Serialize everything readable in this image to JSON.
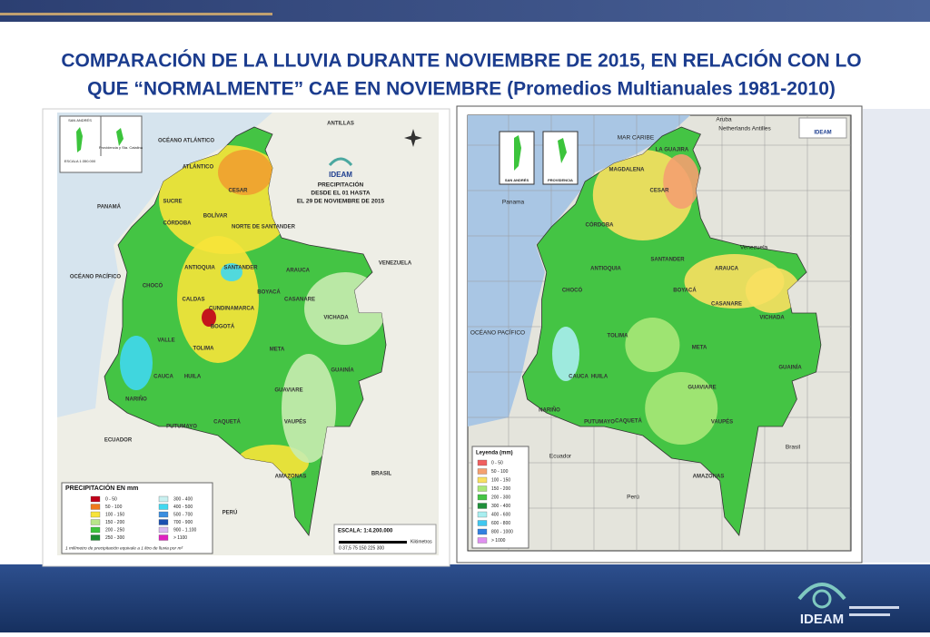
{
  "title": [
    "COMPARACIÓN DE LA LLUVIA DURANTE NOVIEMBRE DE 2015, EN RELACIÓN CON LO",
    "QUE “NORMALMENTE” CAE EN NOVIEMBRE (Promedios Multianuales 1981-2010)"
  ],
  "left_map": {
    "org": "IDEAM",
    "heading": [
      "PRECIPITACIÓN",
      "DESDE EL 01 HASTA",
      "EL 29 DE NOVIEMBRE DE 2015"
    ],
    "inset": [
      "SAN ANDRÉS",
      "Providencia y Sta. Catalina",
      "ESCALA 1:350.000"
    ],
    "labels": [
      "ANTILLAS",
      "OCÉANO ATLÁNTICO",
      "PANAMÁ",
      "VENEZUELA",
      "OCÉANO PACÍFICO",
      "ECUADOR",
      "BRASIL",
      "PERÚ",
      "ATLÁNTICO",
      "CESAR",
      "SUCRE",
      "CÓRDOBA",
      "BOLÍVAR",
      "NORTE DE SANTANDER",
      "ANTIOQUIA",
      "SANTANDER",
      "ARAUCA",
      "CHOCÓ",
      "BOYACÁ",
      "CASANARE",
      "CALDAS",
      "CUNDINAMARCA",
      "VICHADA",
      "BOGOTÁ",
      "VALLE",
      "TOLIMA",
      "META",
      "HUILA",
      "CAUCA",
      "GUAINÍA",
      "GUAVIARE",
      "NARIÑO",
      "CAQUETÁ",
      "PUTUMAYO",
      "VAUPÉS",
      "AMAZONAS"
    ],
    "legend": {
      "title": "PRECIPITACIÓN EN mm",
      "items": [
        {
          "label": "0 - 50",
          "color": "#c0001a"
        },
        {
          "label": "50 - 100",
          "color": "#f07a1a"
        },
        {
          "label": "100 - 150",
          "color": "#f7e43a"
        },
        {
          "label": "150 - 200",
          "color": "#b8e68a"
        },
        {
          "label": "200 - 250",
          "color": "#3cc43c"
        },
        {
          "label": "250 - 300",
          "color": "#1e8e32"
        },
        {
          "label": "300 - 400",
          "color": "#c8f0f0"
        },
        {
          "label": "400 - 500",
          "color": "#40d8f0"
        },
        {
          "label": "500 - 700",
          "color": "#3a8ee0"
        },
        {
          "label": "700 - 900",
          "color": "#1a4fb0"
        },
        {
          "label": "900 - 1.100",
          "color": "#d9b8f0"
        },
        {
          "label": "> 1100",
          "color": "#e020c0"
        }
      ]
    },
    "note": "1 milímetro de precipitación equivale a 1 litro de lluvia por m²",
    "scale": "ESCALA: 1:4.200.000",
    "scale_ticks": "0 37,5 75    150    225    300",
    "scale_unit": "Kilómetros"
  },
  "right_map": {
    "inset": [
      "SAN ANDRÉS",
      "PROVIDENCIA"
    ],
    "labels": [
      "Aruba",
      "Netherlands Antilles",
      "MAR CARIBE",
      "Panama",
      "Venezuela",
      "OCÉANO PACÍFICO",
      "Ecuador",
      "Perú",
      "Brasil",
      "LA GUAJIRA",
      "MAGDALENA",
      "CESAR",
      "CÓRDOBA",
      "ANTIOQUIA",
      "SANTANDER",
      "ARAUCA",
      "BOYACÁ",
      "CASANARE",
      "CHOCÓ",
      "META",
      "VICHADA",
      "GUAINÍA",
      "GUAVIARE",
      "CAQUETÁ",
      "VAUPÉS",
      "AMAZONAS",
      "PUTUMAYO",
      "NARIÑO",
      "CAUCA",
      "TOLIMA",
      "HUILA"
    ],
    "org": "IDEAM",
    "legend": {
      "title": "Leyenda (mm)",
      "items": [
        {
          "label": "0 - 50",
          "color": "#f06060"
        },
        {
          "label": "50 - 100",
          "color": "#f4a070"
        },
        {
          "label": "100 - 150",
          "color": "#f8e060"
        },
        {
          "label": "150 - 200",
          "color": "#a8e878"
        },
        {
          "label": "200 - 300",
          "color": "#44c444"
        },
        {
          "label": "300 - 400",
          "color": "#1f8f3a"
        },
        {
          "label": "400 - 600",
          "color": "#a8eef0"
        },
        {
          "label": "600 - 800",
          "color": "#40c8f0"
        },
        {
          "label": "800 - 1000",
          "color": "#3080e0"
        },
        {
          "label": "> 1000",
          "color": "#e090f0"
        }
      ]
    }
  },
  "footer": {
    "logo": "IDEAM"
  }
}
